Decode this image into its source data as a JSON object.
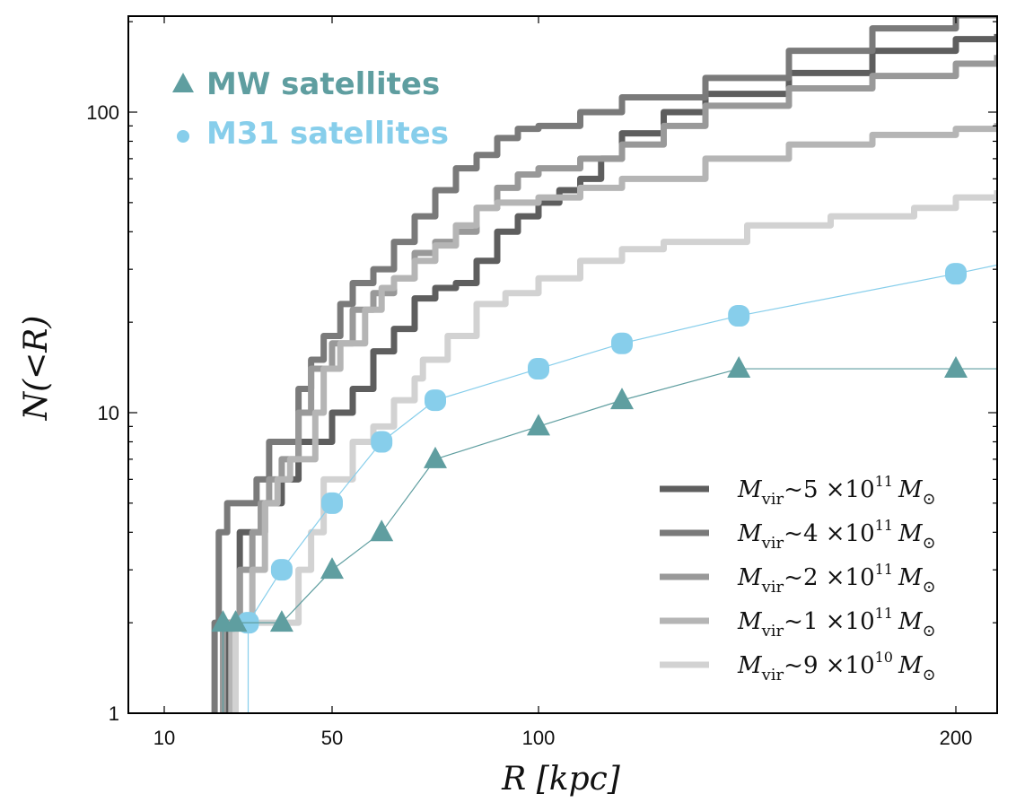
{
  "chart_data": {
    "type": "line",
    "xlabel": "R [kpc]",
    "ylabel": "N(<R)",
    "x_scale": "linear-sqrt-like",
    "y_scale": "log",
    "xlim": [
      0,
      210
    ],
    "ylim": [
      1,
      210
    ],
    "x_ticks": [
      {
        "value": 10,
        "label": "10"
      },
      {
        "value": 50,
        "label": "50"
      },
      {
        "value": 100,
        "label": "100"
      },
      {
        "value": 200,
        "label": "200"
      }
    ],
    "y_ticks": [
      {
        "value": 1,
        "label": "1"
      },
      {
        "value": 10,
        "label": "10"
      },
      {
        "value": 100,
        "label": "100"
      }
    ],
    "marker_legend": [
      {
        "label": "MW satellites",
        "marker": "triangle",
        "color": "#5f9ea0"
      },
      {
        "label": "M31 satellites",
        "marker": "circle",
        "color": "#87ceeb"
      }
    ],
    "line_legend": [
      {
        "name": "M_vir",
        "exp_mantissa": "5",
        "exp_power": "11",
        "color": "#5e5e5e",
        "text": "M",
        "sub": "vir",
        "approx": "~5 ×10",
        "sup": "11",
        "tail": "M",
        "tail_sub": "⊙"
      },
      {
        "name": "M_vir",
        "exp_mantissa": "4",
        "exp_power": "11",
        "color": "#7a7a7a",
        "text": "M",
        "sub": "vir",
        "approx": "~4 ×10",
        "sup": "11",
        "tail": "M",
        "tail_sub": "⊙"
      },
      {
        "name": "M_vir",
        "exp_mantissa": "2",
        "exp_power": "11",
        "color": "#999999",
        "text": "M",
        "sub": "vir",
        "approx": "~2 ×10",
        "sup": "11",
        "tail": "M",
        "tail_sub": "⊙"
      },
      {
        "name": "M_vir",
        "exp_mantissa": "1",
        "exp_power": "11",
        "color": "#b5b5b5",
        "text": "M",
        "sub": "vir",
        "approx": "~1 ×10",
        "sup": "11",
        "tail": "M",
        "tail_sub": "⊙"
      },
      {
        "name": "M_vir",
        "exp_mantissa": "9",
        "exp_power": "10",
        "color": "#d2d2d2",
        "text": "M",
        "sub": "vir",
        "approx": "~9 ×10",
        "sup": "10",
        "tail": "M",
        "tail_sub": "⊙"
      }
    ],
    "series": [
      {
        "name": "Mvir~5e11",
        "color": "#5e5e5e",
        "points": [
          [
            25,
            1
          ],
          [
            25,
            2
          ],
          [
            28,
            2
          ],
          [
            28,
            4
          ],
          [
            32,
            4
          ],
          [
            34,
            5
          ],
          [
            38,
            6
          ],
          [
            42,
            8
          ],
          [
            45,
            8
          ],
          [
            50,
            10
          ],
          [
            55,
            12
          ],
          [
            60,
            16
          ],
          [
            65,
            19
          ],
          [
            70,
            24
          ],
          [
            75,
            26
          ],
          [
            80,
            27
          ],
          [
            85,
            32
          ],
          [
            90,
            40
          ],
          [
            95,
            45
          ],
          [
            100,
            50
          ],
          [
            105,
            55
          ],
          [
            110,
            60
          ],
          [
            115,
            70
          ],
          [
            120,
            85
          ],
          [
            130,
            100
          ],
          [
            140,
            115
          ],
          [
            160,
            135
          ],
          [
            180,
            160
          ],
          [
            200,
            175
          ],
          [
            210,
            182
          ]
        ]
      },
      {
        "name": "Mvir~4e11",
        "color": "#7a7a7a",
        "points": [
          [
            22,
            1
          ],
          [
            22,
            2
          ],
          [
            23,
            3
          ],
          [
            23,
            4
          ],
          [
            25,
            5
          ],
          [
            30,
            5
          ],
          [
            32,
            6
          ],
          [
            35,
            8
          ],
          [
            40,
            8
          ],
          [
            42,
            12
          ],
          [
            45,
            15
          ],
          [
            48,
            18
          ],
          [
            52,
            23
          ],
          [
            55,
            27
          ],
          [
            60,
            30
          ],
          [
            65,
            37
          ],
          [
            70,
            45
          ],
          [
            75,
            55
          ],
          [
            80,
            65
          ],
          [
            85,
            72
          ],
          [
            90,
            82
          ],
          [
            95,
            88
          ],
          [
            100,
            90
          ],
          [
            110,
            100
          ],
          [
            120,
            112
          ],
          [
            140,
            130
          ],
          [
            160,
            160
          ],
          [
            180,
            190
          ],
          [
            200,
            210
          ],
          [
            210,
            220
          ]
        ]
      },
      {
        "name": "Mvir~2e11",
        "color": "#999999",
        "points": [
          [
            24,
            1
          ],
          [
            24,
            2
          ],
          [
            28,
            2
          ],
          [
            28,
            3
          ],
          [
            31,
            4
          ],
          [
            33,
            5
          ],
          [
            35,
            6
          ],
          [
            38,
            7
          ],
          [
            40,
            7
          ],
          [
            42,
            10
          ],
          [
            45,
            14
          ],
          [
            50,
            17
          ],
          [
            55,
            22
          ],
          [
            60,
            25
          ],
          [
            65,
            28
          ],
          [
            70,
            34
          ],
          [
            75,
            37
          ],
          [
            80,
            40
          ],
          [
            85,
            48
          ],
          [
            90,
            56
          ],
          [
            95,
            62
          ],
          [
            100,
            65
          ],
          [
            110,
            70
          ],
          [
            120,
            78
          ],
          [
            130,
            90
          ],
          [
            140,
            105
          ],
          [
            160,
            120
          ],
          [
            180,
            132
          ],
          [
            200,
            145
          ],
          [
            210,
            155
          ]
        ]
      },
      {
        "name": "Mvir~1e11",
        "color": "#b5b5b5",
        "points": [
          [
            26,
            1
          ],
          [
            26,
            2
          ],
          [
            31,
            2
          ],
          [
            31,
            3
          ],
          [
            34,
            5
          ],
          [
            37,
            6
          ],
          [
            40,
            7
          ],
          [
            44,
            7
          ],
          [
            46,
            10
          ],
          [
            48,
            14
          ],
          [
            52,
            17
          ],
          [
            58,
            22
          ],
          [
            62,
            26
          ],
          [
            65,
            28
          ],
          [
            70,
            32
          ],
          [
            75,
            36
          ],
          [
            80,
            42
          ],
          [
            85,
            48
          ],
          [
            90,
            50
          ],
          [
            95,
            50
          ],
          [
            100,
            52
          ],
          [
            110,
            56
          ],
          [
            120,
            60
          ],
          [
            140,
            70
          ],
          [
            160,
            78
          ],
          [
            180,
            84
          ],
          [
            200,
            88
          ],
          [
            210,
            92
          ]
        ]
      },
      {
        "name": "Mvir~9e10",
        "color": "#d2d2d2",
        "points": [
          [
            27,
            1
          ],
          [
            27,
            2
          ],
          [
            42,
            2
          ],
          [
            42,
            3
          ],
          [
            45,
            4
          ],
          [
            48,
            6
          ],
          [
            55,
            8
          ],
          [
            60,
            9
          ],
          [
            65,
            11
          ],
          [
            70,
            13
          ],
          [
            72,
            15
          ],
          [
            78,
            18
          ],
          [
            85,
            23
          ],
          [
            92,
            25
          ],
          [
            100,
            28
          ],
          [
            110,
            32
          ],
          [
            120,
            35
          ],
          [
            130,
            37
          ],
          [
            150,
            42
          ],
          [
            170,
            45
          ],
          [
            190,
            48
          ],
          [
            200,
            52
          ],
          [
            210,
            55
          ]
        ]
      },
      {
        "name": "M31 satellites",
        "color": "#87ceeb",
        "marker": "circle",
        "points": [
          [
            30,
            1
          ],
          [
            30,
            2
          ],
          [
            38,
            3
          ],
          [
            50,
            5
          ],
          [
            62,
            8
          ],
          [
            75,
            11
          ],
          [
            100,
            14
          ],
          [
            120,
            17
          ],
          [
            148,
            21
          ],
          [
            200,
            29
          ],
          [
            210,
            31
          ]
        ]
      },
      {
        "name": "MW satellites",
        "color": "#5f9ea0",
        "marker": "triangle",
        "points": [
          [
            24,
            1
          ],
          [
            24,
            2
          ],
          [
            27,
            2
          ],
          [
            38,
            2
          ],
          [
            50,
            3
          ],
          [
            62,
            4
          ],
          [
            75,
            7
          ],
          [
            100,
            9
          ],
          [
            120,
            11
          ],
          [
            148,
            14
          ],
          [
            200,
            14
          ],
          [
            210,
            14
          ]
        ]
      }
    ]
  }
}
